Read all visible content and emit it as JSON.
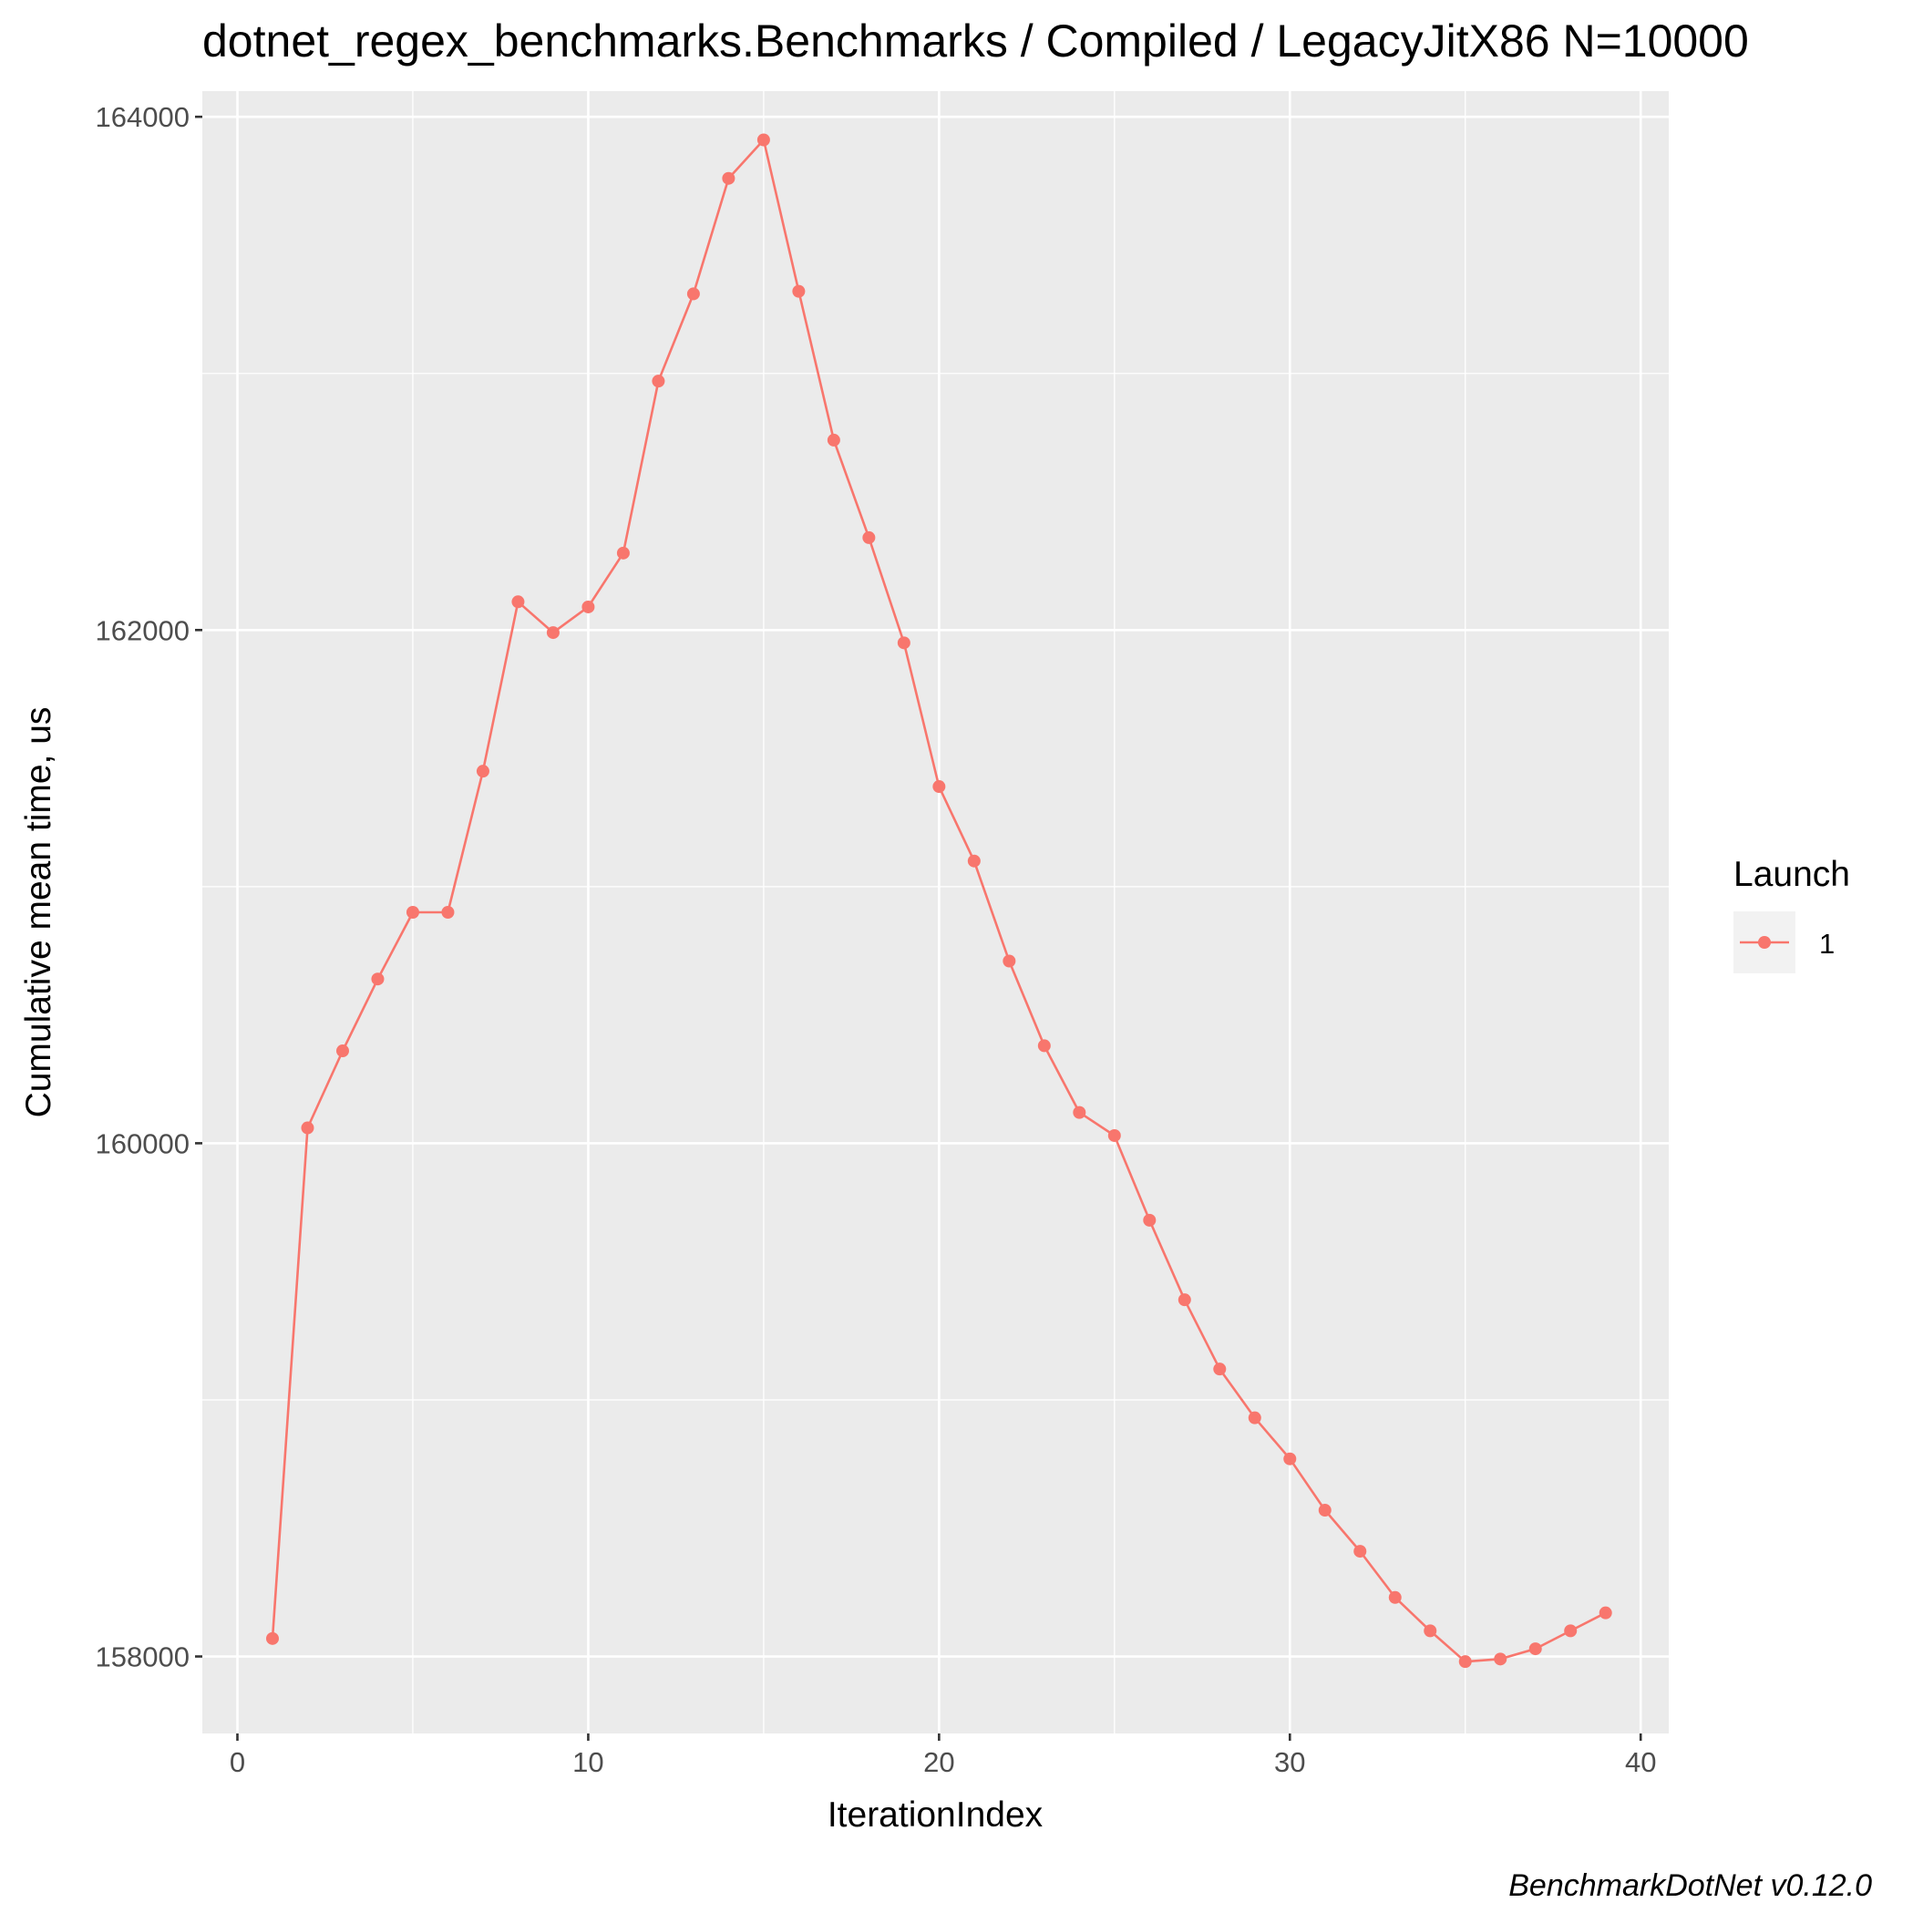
{
  "chart_data": {
    "type": "line",
    "title": "dotnet_regex_benchmarks.Benchmarks / Compiled / LegacyJitX86 N=10000",
    "xlabel": "IterationIndex",
    "ylabel": "Cumulative mean time, us",
    "caption": "BenchmarkDotNet v0.12.0",
    "xlim": [
      -1,
      40.8
    ],
    "ylim": [
      157700,
      164100
    ],
    "x_ticks": [
      0,
      10,
      20,
      30,
      40
    ],
    "x_tick_labels": [
      "0",
      "10",
      "20",
      "30",
      "40"
    ],
    "y_ticks": [
      158000,
      160000,
      162000,
      164000
    ],
    "y_tick_labels": [
      "158000",
      "160000",
      "162000",
      "164000"
    ],
    "grid": true,
    "legend": {
      "title": "Launch",
      "position": "right",
      "entries": [
        "1"
      ]
    },
    "colors": {
      "series": "#f8766d",
      "panel": "#ebebeb",
      "grid": "#ffffff"
    },
    "series": [
      {
        "name": "1",
        "x": [
          1,
          2,
          3,
          4,
          5,
          6,
          7,
          8,
          9,
          10,
          11,
          12,
          13,
          14,
          15,
          16,
          17,
          18,
          19,
          20,
          21,
          22,
          23,
          24,
          25,
          26,
          27,
          28,
          29,
          30,
          31,
          32,
          33,
          34,
          35,
          36,
          37,
          38,
          39
        ],
        "y": [
          158070,
          160060,
          160360,
          160640,
          160900,
          160900,
          161450,
          162110,
          161990,
          162090,
          162300,
          162970,
          163310,
          163760,
          163910,
          163320,
          162740,
          162360,
          161950,
          161390,
          161100,
          160710,
          160380,
          160120,
          160030,
          159700,
          159390,
          159120,
          158930,
          158770,
          158570,
          158410,
          158230,
          158100,
          157980,
          157990,
          158030,
          158100,
          158170
        ]
      }
    ]
  }
}
